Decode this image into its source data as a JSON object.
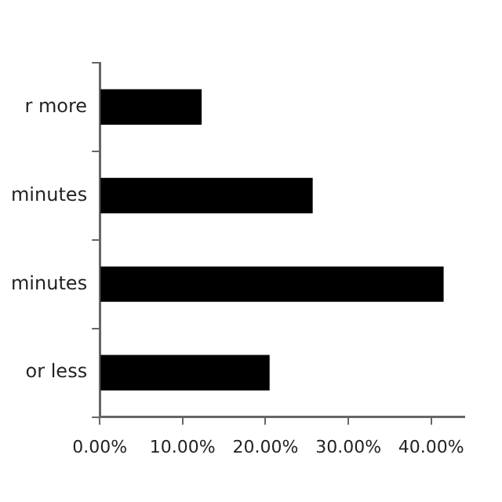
{
  "chart_data": {
    "type": "bar",
    "orientation": "horizontal",
    "categories": [
      "r more",
      "minutes",
      "minutes",
      "or less"
    ],
    "values": [
      12.3,
      25.7,
      41.5,
      20.5
    ],
    "color": "#000000",
    "xlim": [
      0,
      44
    ],
    "xticks": [
      {
        "value": 0,
        "label": "0.00%"
      },
      {
        "value": 10,
        "label": "10.00%"
      },
      {
        "value": 20,
        "label": "20.00%"
      },
      {
        "value": 30,
        "label": "30.00%"
      },
      {
        "value": 40,
        "label": "40.00%"
      }
    ],
    "grid": false,
    "legend": false
  }
}
